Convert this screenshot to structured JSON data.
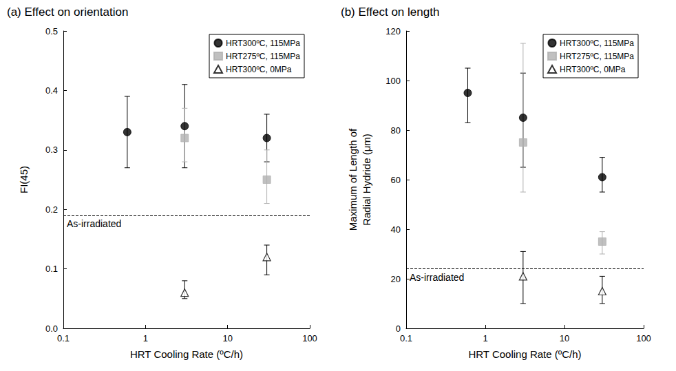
{
  "chart_data": [
    {
      "type": "scatter",
      "title": "(a) Effect on orientation",
      "xlabel": "HRT Cooling Rate (ºC/h)",
      "ylabel": "FI(45)",
      "log": "x",
      "grid": false,
      "legend": "upper right",
      "xlim": [
        0.1,
        100
      ],
      "xticks": [
        0.1,
        1,
        10,
        100
      ],
      "ylim": [
        0,
        0.5
      ],
      "yticks": [
        {
          "value": 0,
          "label": "0.0"
        },
        0.1,
        0.2,
        0.3,
        0.4,
        0.5
      ],
      "reference_line": {
        "label": "As-irradiated",
        "value": 0.19,
        "line_style": "dashed"
      },
      "series": [
        {
          "name": "HRT300ºC, 115MPa",
          "color": "#000000",
          "marker": "circle",
          "x": [
            0.6,
            3,
            30
          ],
          "values": [
            0.33,
            0.34,
            0.32
          ],
          "y_low": [
            0.27,
            0.27,
            0.28
          ],
          "y_high": [
            0.39,
            0.41,
            0.36
          ]
        },
        {
          "name": "HRT275ºC, 115MPa",
          "color": "#b0b0b0",
          "marker": "square",
          "x": [
            3,
            30
          ],
          "values": [
            0.32,
            0.25
          ],
          "y_low": [
            0.28,
            0.21
          ],
          "y_high": [
            0.37,
            0.3
          ]
        },
        {
          "name": "HRT300ºC, 0MPa",
          "color": "#000000",
          "marker": "triangle_open",
          "x": [
            3,
            30
          ],
          "values": [
            0.06,
            0.12
          ],
          "y_low": [
            0.05,
            0.09
          ],
          "y_high": [
            0.08,
            0.14
          ]
        }
      ]
    },
    {
      "type": "scatter",
      "title": "(b) Effect on length",
      "xlabel": "HRT Cooling Rate (ºC/h)",
      "ylabel": "Maximum of Length of\nRadial Hydride (μm)",
      "log": "x",
      "grid": false,
      "legend": "upper right",
      "xlim": [
        0.1,
        100
      ],
      "xticks": [
        0.1,
        1,
        10,
        100
      ],
      "ylim": [
        0,
        120
      ],
      "yticks": [
        0,
        20,
        40,
        60,
        80,
        100,
        120
      ],
      "reference_line": {
        "label": "As-irradiated",
        "value": 24,
        "line_style": "dashed"
      },
      "series": [
        {
          "name": "HRT300ºC, 115MPa",
          "color": "#000000",
          "marker": "circle",
          "x": [
            0.6,
            3,
            30
          ],
          "values": [
            95,
            85,
            61
          ],
          "y_low": [
            83,
            65,
            55
          ],
          "y_high": [
            105,
            103,
            69
          ]
        },
        {
          "name": "HRT275ºC, 115MPa",
          "color": "#b0b0b0",
          "marker": "square",
          "x": [
            3,
            30
          ],
          "values": [
            75,
            35
          ],
          "y_low": [
            55,
            30
          ],
          "y_high": [
            115,
            39
          ]
        },
        {
          "name": "HRT300ºC, 0MPa",
          "color": "#000000",
          "marker": "triangle_open",
          "x": [
            3,
            30
          ],
          "values": [
            21,
            15
          ],
          "y_low": [
            10,
            10
          ],
          "y_high": [
            31,
            21
          ]
        }
      ]
    }
  ]
}
